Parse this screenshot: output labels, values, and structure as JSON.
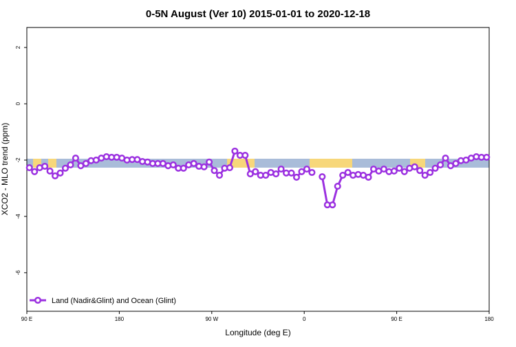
{
  "chart_data": {
    "type": "line",
    "title": "0-5N August (Ver 10)   2015-01-01 to 2020-12-18",
    "x_label": "Longitude (deg E)",
    "y_label": "XCO2 - MLO trend (ppm)",
    "xlim": [
      90,
      540
    ],
    "xticks": [
      {
        "value": 90,
        "label": "90 E"
      },
      {
        "value": 180,
        "label": "180"
      },
      {
        "value": 270,
        "label": "90 W"
      },
      {
        "value": 360,
        "label": "0"
      },
      {
        "value": 450,
        "label": "90 E"
      },
      {
        "value": 540,
        "label": "180"
      }
    ],
    "ylim": [
      -7.37,
      2.71
    ],
    "yticks": [
      2,
      0,
      -2,
      -4,
      -6
    ],
    "legend_position": "bottom-left",
    "series": [
      {
        "name": "Land (Nadir&Glint) and Ocean (Glint)",
        "color": "#9b30e0",
        "x": [
          92.5,
          97.5,
          102.5,
          107.5,
          112.5,
          117.5,
          122.5,
          127.5,
          132.5,
          137.5,
          142.5,
          147.5,
          152.5,
          157.5,
          162.5,
          167.5,
          172.5,
          177.5,
          182.5,
          187.5,
          192.5,
          197.5,
          202.5,
          207.5,
          212.5,
          217.5,
          222.5,
          227.5,
          232.5,
          237.5,
          242.5,
          247.5,
          252.5,
          257.5,
          262.5,
          267.5,
          272.5,
          277.5,
          282.5,
          287.5,
          292.5,
          297.5,
          302.5,
          307.5,
          312.5,
          317.5,
          322.5,
          327.5,
          332.5,
          337.5,
          342.5,
          347.5,
          352.5,
          357.5,
          362.5,
          367.5,
          372.5,
          377.5,
          382.5,
          387.5,
          392.5,
          397.5,
          402.5,
          407.5,
          412.5,
          417.5,
          422.5,
          427.5,
          432.5,
          437.5,
          442.5,
          447.5,
          452.5,
          457.5,
          462.5,
          467.5,
          472.5,
          477.5,
          482.5,
          487.5,
          492.5,
          497.5,
          502.5,
          507.5,
          512.5,
          517.5,
          522.5,
          527.5,
          532.5,
          537.5
        ],
        "values": [
          -2.27,
          -2.41,
          -2.27,
          -2.22,
          -2.39,
          -2.56,
          -2.46,
          -2.29,
          -2.17,
          -1.93,
          -2.2,
          -2.12,
          -2.02,
          -2.0,
          -1.93,
          -1.88,
          -1.9,
          -1.9,
          -1.93,
          -2.0,
          -1.98,
          -1.98,
          -2.05,
          -2.07,
          -2.12,
          -2.12,
          -2.12,
          -2.2,
          -2.17,
          -2.29,
          -2.29,
          -2.17,
          -2.12,
          -2.22,
          -2.24,
          -2.07,
          -2.37,
          -2.54,
          -2.29,
          -2.27,
          -1.68,
          -1.83,
          -1.83,
          -2.49,
          -2.41,
          -2.54,
          -2.54,
          -2.44,
          -2.49,
          -2.32,
          -2.46,
          -2.46,
          -2.61,
          -2.41,
          -2.32,
          -2.44,
          null,
          -2.59,
          -3.59,
          -3.59,
          -2.93,
          -2.54,
          -2.44,
          -2.54,
          -2.51,
          -2.54,
          -2.61,
          -2.32,
          -2.39,
          -2.32,
          -2.41,
          -2.39,
          -2.29,
          -2.41,
          -2.29,
          -2.24,
          -2.37,
          -2.54,
          -2.44,
          -2.29,
          -2.17,
          -1.93,
          -2.2,
          -2.12,
          -2.02,
          -2.0,
          -1.93,
          -1.88,
          -1.9,
          -1.9
        ]
      }
    ]
  }
}
